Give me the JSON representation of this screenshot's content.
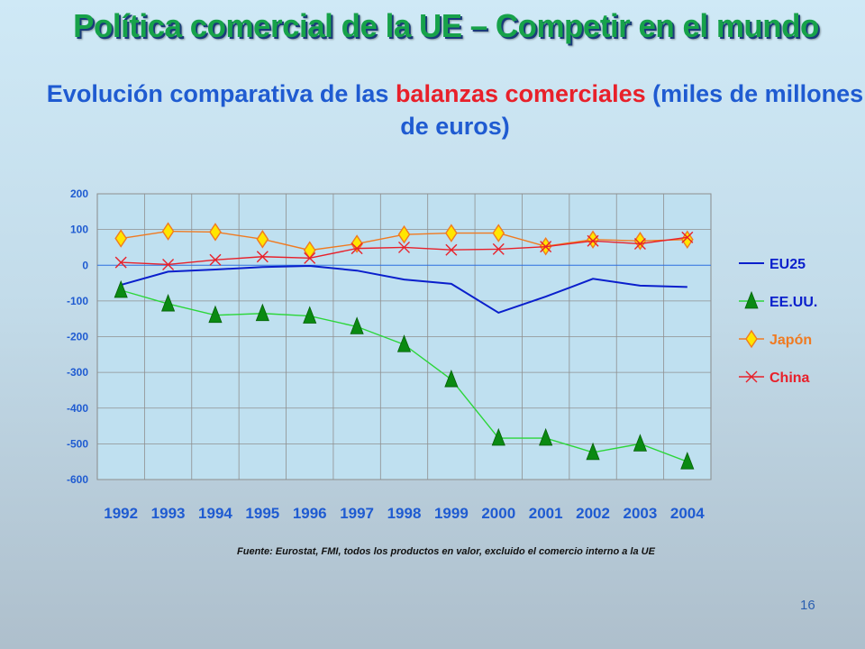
{
  "slide": {
    "title": "Política comercial de la UE – Competir en el mundo",
    "subtitle_part1": "Evolución comparativa de las ",
    "subtitle_highlight": "balanzas comerciales",
    "subtitle_part2": " (miles de millones de euros)",
    "source": "Fuente: Eurostat, FMI, todos los productos en valor, excluido el comercio interno a la UE",
    "page_number": "16"
  },
  "chart_data": {
    "type": "line",
    "x": [
      "1992",
      "1993",
      "1994",
      "1995",
      "1996",
      "1997",
      "1998",
      "1999",
      "2000",
      "2001",
      "2002",
      "2003",
      "2004"
    ],
    "yticks": [
      "200",
      "100",
      "0",
      "-100",
      "-200",
      "-300",
      "-400",
      "-500",
      "-600"
    ],
    "ylim": [
      -600,
      200
    ],
    "grid": true,
    "legend_position": "right",
    "series": [
      {
        "name": "EU25",
        "color": "#0a1fcc",
        "marker": "none",
        "label_color": "#0a1fcc",
        "values": [
          -55,
          -18,
          -12,
          -5,
          -2,
          -15,
          -40,
          -52,
          -133,
          -88,
          -38,
          -57,
          -61
        ]
      },
      {
        "name": "EE.UU.",
        "color": "#2cd63a",
        "marker": "triangle",
        "label_color": "#0a1fcc",
        "values": [
          -70,
          -108,
          -140,
          -135,
          -142,
          -172,
          -222,
          -320,
          -484,
          -484,
          -524,
          -500,
          -550
        ]
      },
      {
        "name": "Japón",
        "color": "#f07a20",
        "marker": "diamond",
        "label_color": "#f07a20",
        "values": [
          75,
          95,
          93,
          73,
          42,
          60,
          86,
          90,
          90,
          53,
          72,
          68,
          72
        ]
      },
      {
        "name": "China",
        "color": "#e8202a",
        "marker": "x",
        "label_color": "#e8202a",
        "values": [
          8,
          2,
          15,
          24,
          20,
          47,
          50,
          43,
          45,
          52,
          68,
          60,
          78
        ]
      }
    ]
  }
}
